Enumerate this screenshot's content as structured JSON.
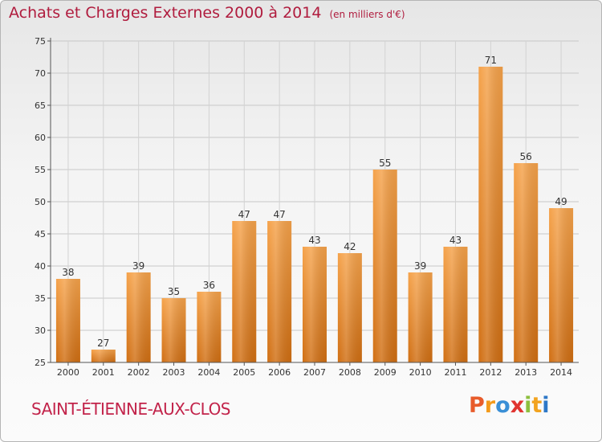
{
  "header": {
    "title": "Achats et Charges Externes 2000 à 2014",
    "unit": "(en milliers d'€)"
  },
  "footer": {
    "city": "SAINT-ÉTIENNE-AUX-CLOS",
    "logo": [
      "P",
      "r",
      "o",
      "x",
      "i",
      "t",
      "i"
    ],
    "logo_colors": [
      "#e85c2b",
      "#f39a1a",
      "#3a8fd6",
      "#e0332f",
      "#8dbf3e",
      "#f2a31f",
      "#2e78c7"
    ]
  },
  "chart_data": {
    "type": "bar",
    "categories": [
      "2000",
      "2001",
      "2002",
      "2003",
      "2004",
      "2005",
      "2006",
      "2007",
      "2008",
      "2009",
      "2010",
      "2011",
      "2012",
      "2013",
      "2014"
    ],
    "values": [
      38,
      27,
      39,
      35,
      36,
      47,
      47,
      43,
      42,
      55,
      39,
      43,
      71,
      56,
      49
    ],
    "ylim": [
      25,
      75
    ],
    "yticks": [
      25,
      30,
      35,
      40,
      45,
      50,
      55,
      60,
      65,
      70,
      75
    ],
    "grid": true,
    "bar_color_top": "#f5a24a",
    "bar_color_bottom": "#d06e12"
  }
}
